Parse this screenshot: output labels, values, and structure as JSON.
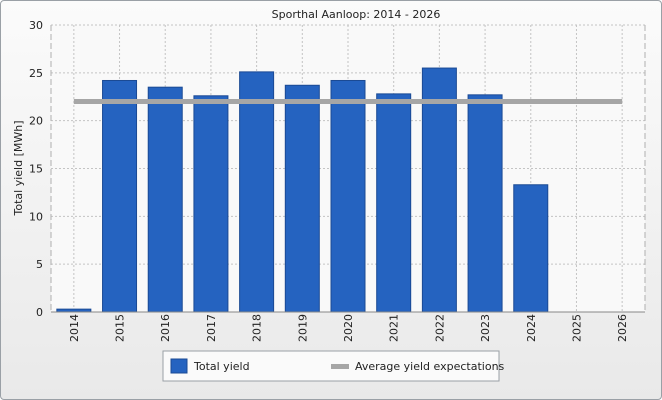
{
  "chart_data": {
    "type": "bar",
    "title": "Sporthal Aanloop: 2014 - 2026",
    "xlabel": "",
    "ylabel": "Total yield [MWh]",
    "ylim": [
      0,
      30
    ],
    "yticks": [
      0,
      5,
      10,
      15,
      20,
      25,
      30
    ],
    "grid": true,
    "categories": [
      "2014",
      "2015",
      "2016",
      "2017",
      "2018",
      "2019",
      "2020",
      "2021",
      "2022",
      "2023",
      "2024",
      "2025",
      "2026"
    ],
    "series": [
      {
        "name": "Total yield",
        "type": "bar",
        "color": "#2563c0",
        "values": [
          0.3,
          24.2,
          23.5,
          22.6,
          25.1,
          23.7,
          24.2,
          22.8,
          25.5,
          22.7,
          13.3,
          null,
          null
        ]
      },
      {
        "name": "Average yield expectations",
        "type": "line",
        "color": "#a6a6a6",
        "values": [
          22.0,
          22.0,
          22.0,
          22.0,
          22.0,
          22.0,
          22.0,
          22.0,
          22.0,
          22.0,
          22.0,
          22.0,
          22.0
        ]
      }
    ],
    "legend": "bottom"
  }
}
